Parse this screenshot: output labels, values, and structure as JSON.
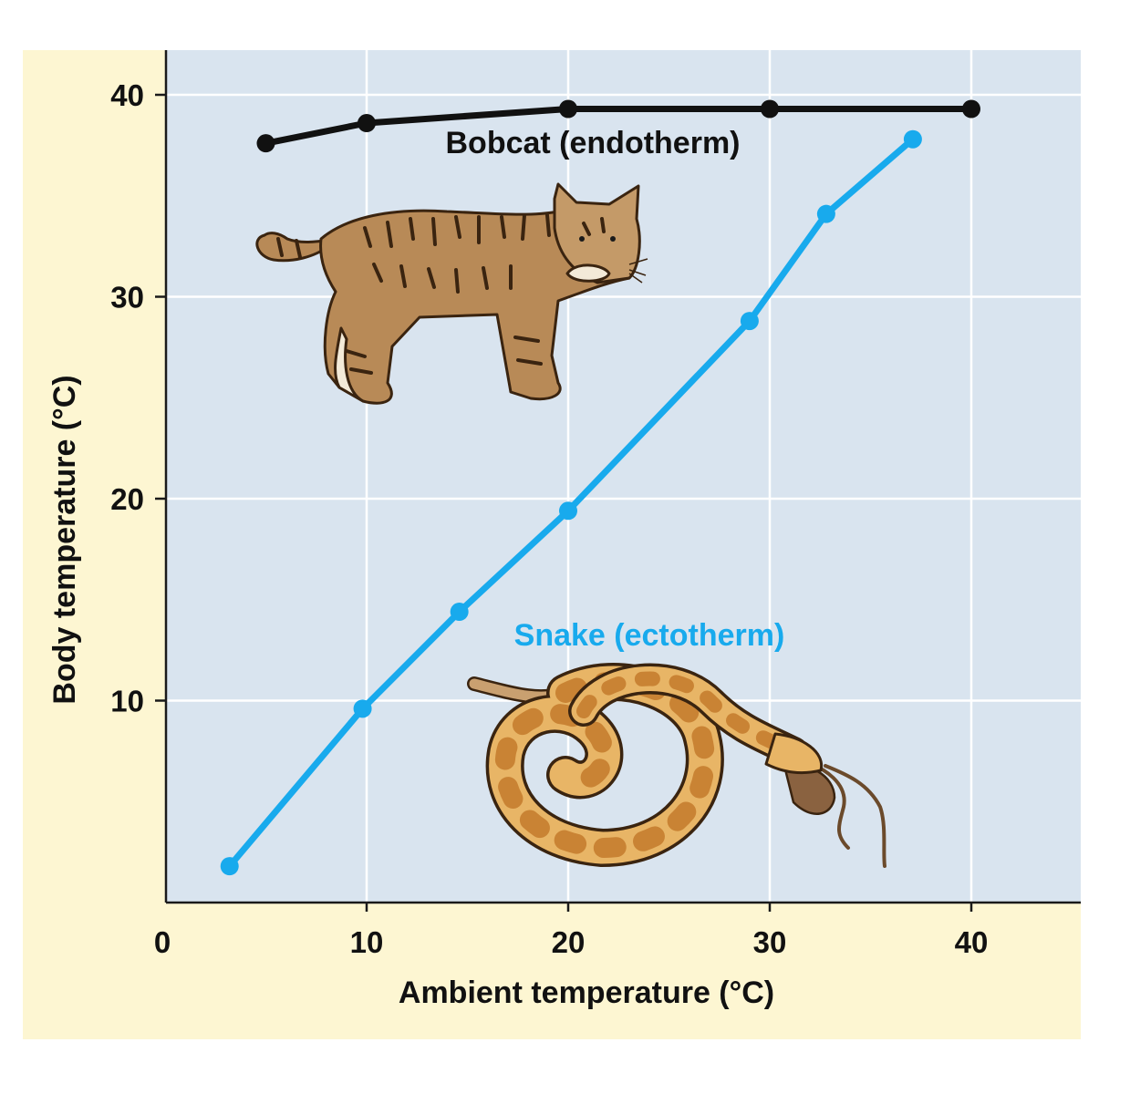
{
  "colors": {
    "page_background": "#fdf6d2",
    "plot_background": "#d9e4ef",
    "grid": "#ffffff",
    "axis": "#1a1a1a",
    "bobcat": "#111111",
    "snake": "#18aaed",
    "bobcat_fur": "#b88a57",
    "snake_skin": "#e8b566",
    "snake_blotch": "#c98334"
  },
  "chart_data": {
    "type": "line",
    "xlabel": "Ambient temperature (°C)",
    "ylabel": "Body temperature (°C)",
    "xlim": [
      0,
      45.5
    ],
    "ylim": [
      0,
      42
    ],
    "x_ticks": [
      "0",
      "10",
      "20",
      "30",
      "40"
    ],
    "y_ticks": [
      "10",
      "20",
      "30",
      "40"
    ],
    "grid": true,
    "series": [
      {
        "name": "Bobcat (endotherm)",
        "color": "#111111",
        "x": [
          5,
          10,
          20,
          30,
          40
        ],
        "y": [
          37.6,
          38.6,
          39.3,
          39.3,
          39.3
        ]
      },
      {
        "name": "Snake (ectotherm)",
        "color": "#18aaed",
        "x": [
          3.2,
          9.8,
          14.6,
          20,
          29,
          32.8,
          37.1
        ],
        "y": [
          1.8,
          9.6,
          14.4,
          19.4,
          28.8,
          34.1,
          37.8
        ]
      }
    ],
    "illustrations": [
      "bobcat",
      "snake-with-mouse"
    ]
  }
}
